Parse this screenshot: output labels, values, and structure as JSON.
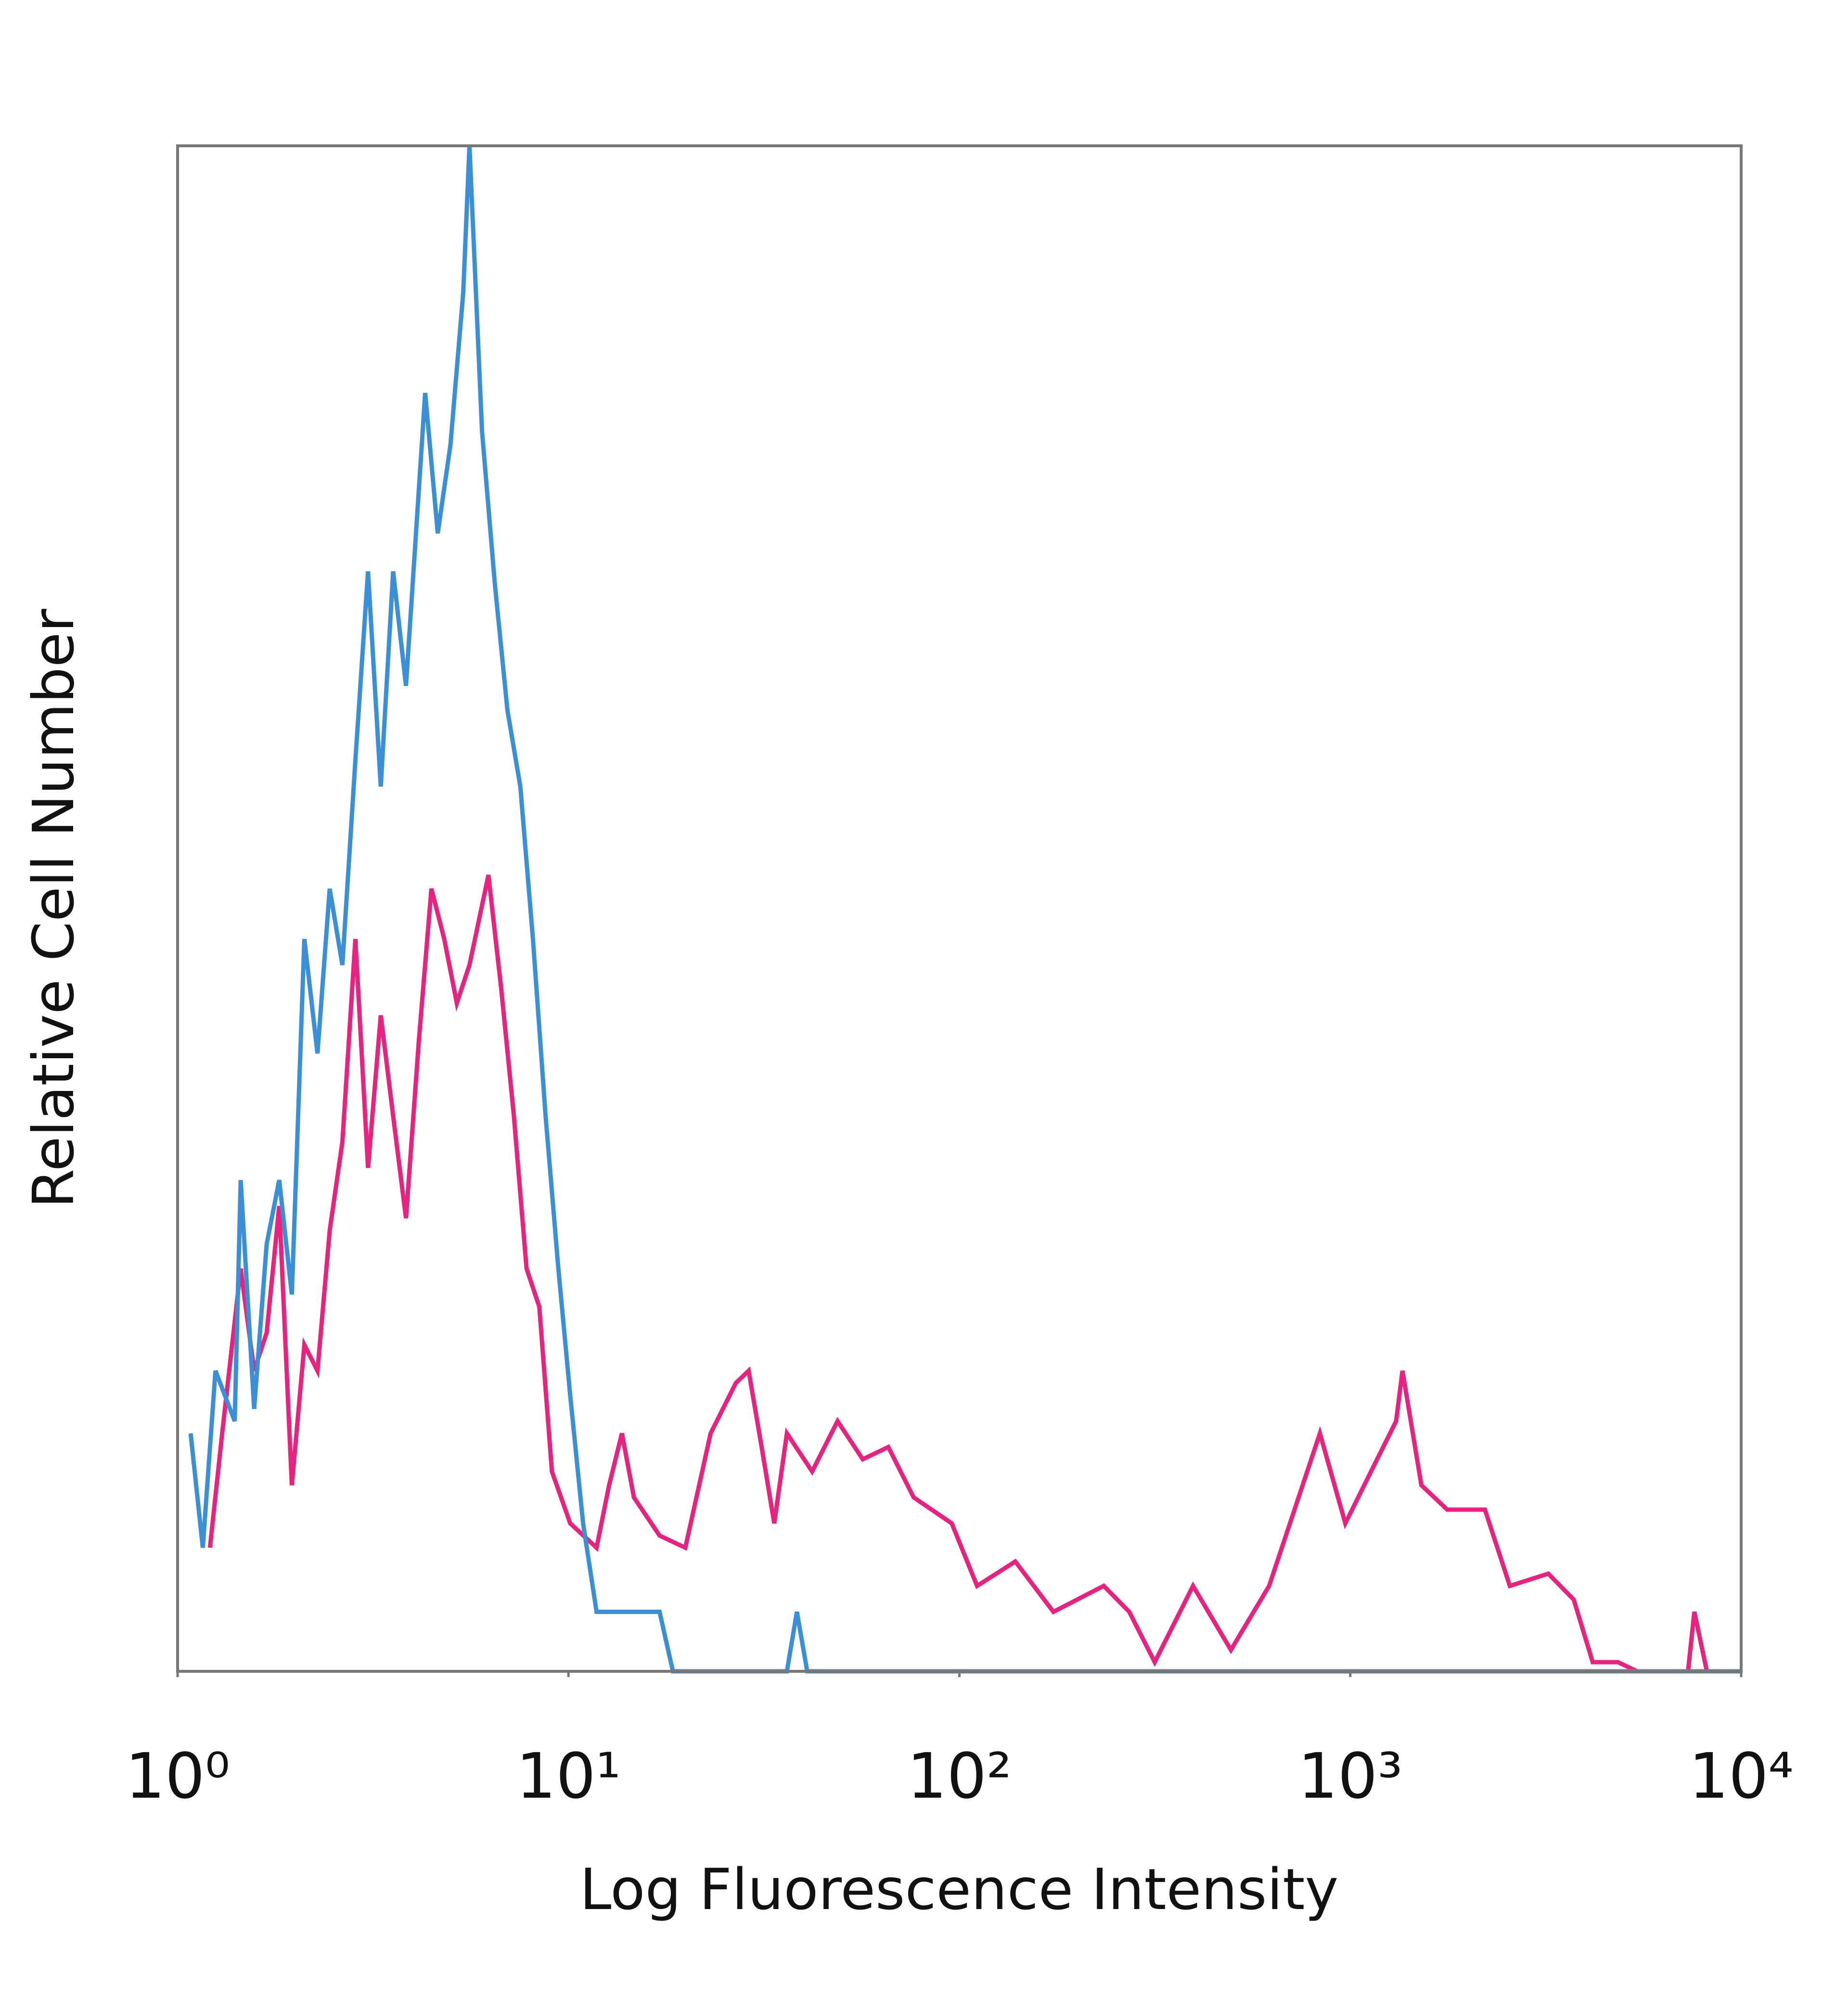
{
  "chart_data": {
    "type": "line",
    "x_label": "Log Fluorescence Intensity",
    "y_label": "Relative Cell Number",
    "xscale": "log",
    "xlim": [
      1,
      10000
    ],
    "xticks": [
      {
        "value": 1,
        "label": "10⁰"
      },
      {
        "value": 10,
        "label": "10¹"
      },
      {
        "value": 100,
        "label": "10²"
      },
      {
        "value": 1000,
        "label": "10³"
      },
      {
        "value": 10000,
        "label": "10⁴"
      }
    ],
    "ylim": [
      0,
      100
    ],
    "grid": false,
    "series": [
      {
        "color": "#e8237f",
        "x": [
          1.21,
          1.3,
          1.45,
          1.57,
          1.69,
          1.82,
          1.96,
          2.11,
          2.28,
          2.45,
          2.64,
          2.85,
          3.07,
          3.31,
          3.56,
          3.84,
          4.14,
          4.46,
          4.81,
          5.18,
          5.58,
          6.24,
          6.73,
          7.25,
          7.81,
          8.42,
          9.07,
          10.1,
          11.8,
          12.7,
          13.7,
          14.7,
          17.1,
          19.9,
          23.1,
          26.8,
          28.9,
          31.2,
          33.6,
          36.2,
          42.0,
          48.8,
          56.6,
          65.8,
          76.4,
          95.6,
          111,
          139,
          174,
          234,
          272,
          316,
          396,
          495,
          620,
          720,
          836,
          971,
          1130,
          1310,
          1360,
          1520,
          1770,
          2210,
          2560,
          3210,
          3730,
          4170,
          4840,
          5420,
          7310,
          7590,
          8170,
          10000
        ],
        "values": [
          8.1,
          15.6,
          26.4,
          19.7,
          22.2,
          30.5,
          12.2,
          21.4,
          19.7,
          28.9,
          34.7,
          48.0,
          33.0,
          43.0,
          36.4,
          29.7,
          41.3,
          51.3,
          48.0,
          43.8,
          46.3,
          52.2,
          44.7,
          36.4,
          26.4,
          23.9,
          13.1,
          9.7,
          8.1,
          12.2,
          15.6,
          11.4,
          8.9,
          8.1,
          15.6,
          18.9,
          19.7,
          14.7,
          9.7,
          15.6,
          13.1,
          16.4,
          13.9,
          14.7,
          11.4,
          9.7,
          5.6,
          7.2,
          3.9,
          5.6,
          3.9,
          0.6,
          5.6,
          1.4,
          5.6,
          10.6,
          15.6,
          9.7,
          13.1,
          16.4,
          19.7,
          12.2,
          10.6,
          10.6,
          5.6,
          6.4,
          4.7,
          0.6,
          0.6,
          0,
          0,
          3.9,
          0,
          0
        ]
      },
      {
        "color": "#3a8fd6",
        "x": [
          1.08,
          1.16,
          1.25,
          1.4,
          1.45,
          1.57,
          1.69,
          1.82,
          1.96,
          2.11,
          2.28,
          2.45,
          2.64,
          2.85,
          3.07,
          3.31,
          3.56,
          3.84,
          4.3,
          4.63,
          4.99,
          5.38,
          5.58,
          6.01,
          6.48,
          6.98,
          7.53,
          8.11,
          8.74,
          9.42,
          10.1,
          10.9,
          11.8,
          14.7,
          17.1,
          18.5,
          36.2,
          38.4,
          40.8,
          10000
        ],
        "values": [
          15.6,
          8.1,
          19.7,
          16.4,
          32.2,
          17.2,
          28.0,
          32.2,
          24.7,
          48.0,
          40.5,
          51.3,
          46.3,
          59.7,
          72.1,
          58.0,
          72.1,
          64.6,
          83.8,
          74.6,
          80.4,
          90.4,
          100,
          81.3,
          71.3,
          63.0,
          58.0,
          48.0,
          36.4,
          26.4,
          18.1,
          9.7,
          3.9,
          3.9,
          3.9,
          0,
          0,
          3.9,
          0,
          0
        ]
      }
    ]
  }
}
